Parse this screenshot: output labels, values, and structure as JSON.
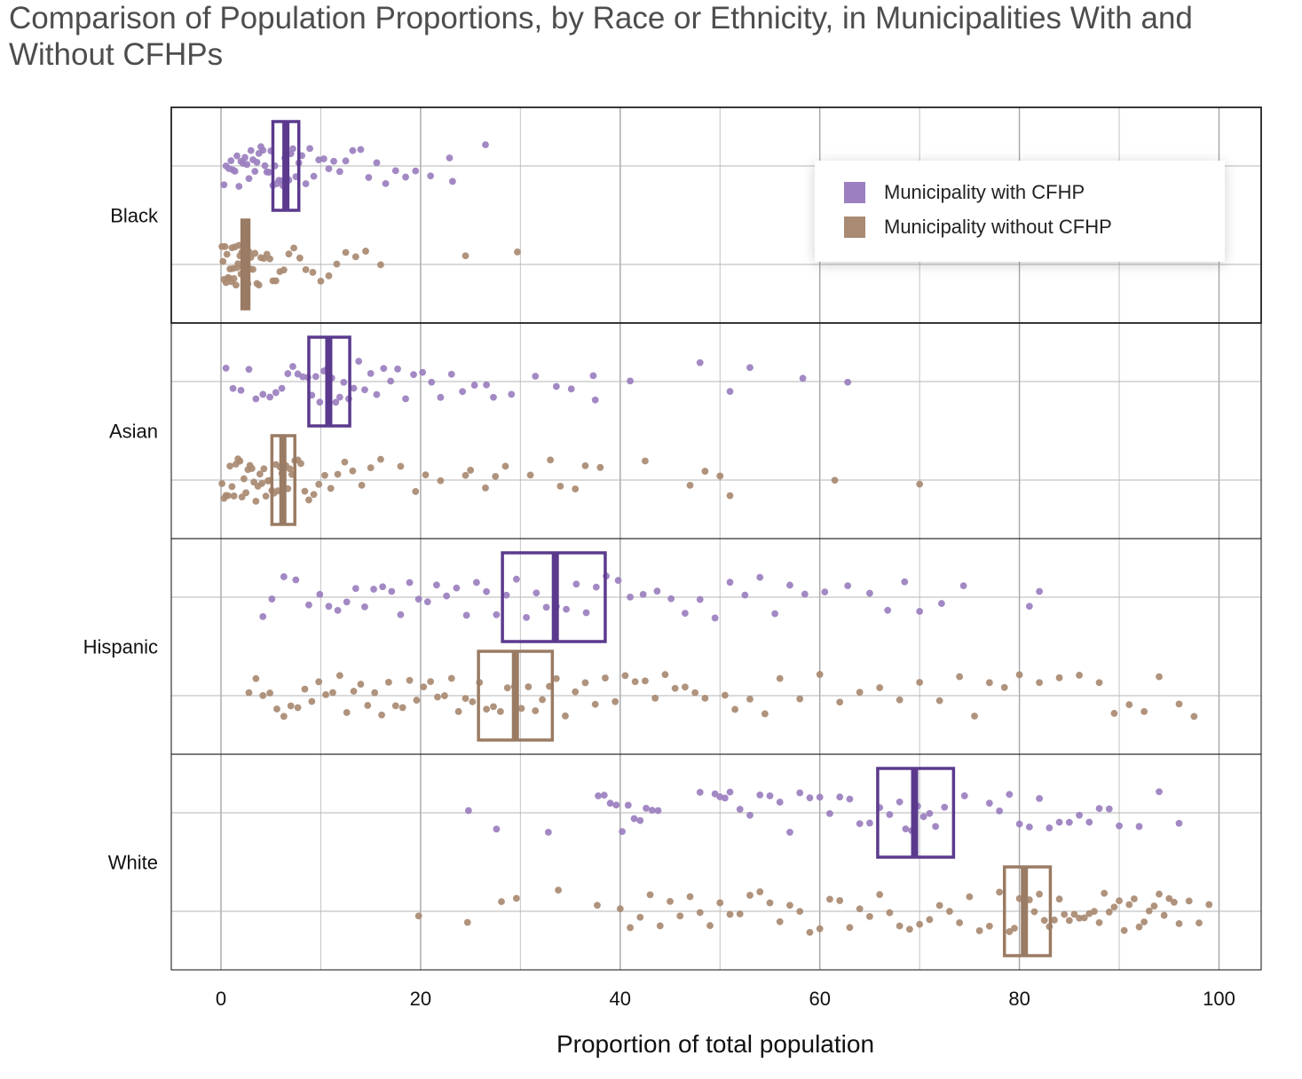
{
  "title": "Comparison of Population Proportions, by Race or Ethnicity, in Municipalities With and Without CFHPs",
  "colors": {
    "with_point": "#9b7fbf",
    "with_box": "#5b3a8e",
    "without_point": "#a98a72",
    "without_box": "#9a7b63",
    "grid": "#b3b3b3",
    "frame": "#222222"
  },
  "chart_data": {
    "type": "scatter",
    "title": "Comparison of Population Proportions, by Race or Ethnicity, in Municipalities With and Without CFHPs",
    "xlabel": "Proportion of total population",
    "ylabel": "",
    "xlim": [
      -5,
      104
    ],
    "x_ticks": [
      0,
      20,
      40,
      60,
      80,
      100
    ],
    "grid": true,
    "legend_position": "top-right",
    "categories": [
      "Black",
      "Asian",
      "Hispanic",
      "White"
    ],
    "series": [
      {
        "name": "Municipality with CFHP",
        "color": "#9b7fbf"
      },
      {
        "name": "Municipality without CFHP",
        "color": "#a98a72"
      }
    ],
    "groups": [
      {
        "category": "Black",
        "with_cfhp": {
          "box": {
            "q1": 5.2,
            "median": 6.5,
            "q3": 7.8
          },
          "points": [
            0.3,
            0.5,
            0.8,
            1,
            1.2,
            1.4,
            1.6,
            1.8,
            2,
            2.2,
            2.4,
            2.6,
            2.8,
            3,
            3.2,
            3.4,
            3.6,
            3.8,
            4,
            4.2,
            4.4,
            4.6,
            4.8,
            5,
            5.2,
            5.4,
            5.6,
            5.8,
            6,
            6.2,
            6.4,
            6.6,
            6.8,
            7,
            7.2,
            7.5,
            7.8,
            8.1,
            8.5,
            8.9,
            9.3,
            9.8,
            10.3,
            10.8,
            11.3,
            11.9,
            12.5,
            13.2,
            14,
            14.8,
            15.6,
            16.5,
            17.5,
            18.5,
            19.5,
            21,
            22.9,
            23.2,
            26.5
          ]
        },
        "without_cfhp": {
          "box": {
            "q1": 2.1,
            "median": 2.4,
            "q3": 2.8
          },
          "points": [
            0.1,
            0.2,
            0.3,
            0.4,
            0.5,
            0.6,
            0.7,
            0.8,
            0.9,
            1,
            1.1,
            1.2,
            1.3,
            1.4,
            1.5,
            1.6,
            1.7,
            1.8,
            1.9,
            2,
            2.1,
            2.2,
            2.3,
            2.4,
            2.5,
            2.6,
            2.7,
            2.8,
            2.9,
            3,
            3.2,
            3.4,
            3.6,
            3.8,
            4,
            4.3,
            4.6,
            4.9,
            5.2,
            5.5,
            5.9,
            6.3,
            6.8,
            7.3,
            7.9,
            8.5,
            9.2,
            10,
            10.8,
            11.6,
            12.5,
            13.5,
            14.5,
            16,
            24.5,
            29.7
          ]
        }
      },
      {
        "category": "Asian",
        "with_cfhp": {
          "box": {
            "q1": 8.8,
            "median": 10.8,
            "q3": 12.9
          },
          "points": [
            0.5,
            1.2,
            2,
            2.8,
            3.5,
            4.2,
            4.9,
            5.5,
            6.1,
            6.7,
            7.2,
            7.7,
            8.2,
            8.7,
            9.1,
            9.5,
            9.9,
            10.3,
            10.7,
            11.1,
            11.5,
            11.9,
            12.3,
            12.8,
            13.3,
            13.8,
            14.4,
            15,
            15.6,
            16.3,
            17,
            17.7,
            18.5,
            19.3,
            20.2,
            21.1,
            22,
            23.1,
            24.2,
            25.4,
            26.6,
            27.3,
            29.1,
            31.5,
            33.6,
            35.1,
            37.3,
            37.5,
            41,
            48,
            51,
            53,
            58.3,
            62.8
          ]
        },
        "without_cfhp": {
          "box": {
            "q1": 5.1,
            "median": 6.2,
            "q3": 7.4
          },
          "points": [
            0.1,
            0.3,
            0.5,
            0.7,
            0.9,
            1.1,
            1.3,
            1.5,
            1.7,
            1.9,
            2.1,
            2.3,
            2.5,
            2.7,
            2.9,
            3.1,
            3.3,
            3.5,
            3.7,
            3.9,
            4.1,
            4.3,
            4.5,
            4.7,
            4.9,
            5.1,
            5.3,
            5.5,
            5.7,
            5.9,
            6.1,
            6.3,
            6.5,
            6.7,
            6.9,
            7.1,
            7.4,
            7.7,
            8,
            8.4,
            8.8,
            9.3,
            9.8,
            10.4,
            11,
            11.7,
            12.4,
            13.2,
            14.1,
            15,
            16,
            18,
            19.5,
            20.5,
            22,
            24.5,
            25,
            26.5,
            27.5,
            28.5,
            31,
            33,
            34,
            35.5,
            36.5,
            38,
            42.5,
            47,
            48.5,
            50,
            51,
            61.5,
            70
          ]
        }
      },
      {
        "category": "Hispanic",
        "with_cfhp": {
          "box": {
            "q1": 28.2,
            "median": 33.5,
            "q3": 38.5
          },
          "points": [
            4.2,
            5.1,
            6.3,
            7.5,
            8.8,
            9.9,
            10.8,
            11.7,
            12.6,
            13.5,
            14.4,
            15.3,
            16.2,
            17.1,
            18,
            18.9,
            19.8,
            20.7,
            21.6,
            22.6,
            23.6,
            24.6,
            25.6,
            26.6,
            27.6,
            28.6,
            29.6,
            30.6,
            31.6,
            32.6,
            33.6,
            34.6,
            35.6,
            36.6,
            37.6,
            38.6,
            39.8,
            41,
            42.3,
            43.7,
            45.1,
            46.5,
            48,
            49.5,
            51,
            52.5,
            54,
            55.5,
            57,
            58.5,
            60.5,
            62.8,
            65,
            66.8,
            68.5,
            70,
            72.2,
            74.4,
            81,
            82
          ]
        },
        "without_cfhp": {
          "box": {
            "q1": 25.8,
            "median": 29.5,
            "q3": 33.2
          },
          "points": [
            2.8,
            3.5,
            4.2,
            4.9,
            5.6,
            6.3,
            7,
            7.7,
            8.4,
            9.1,
            9.8,
            10.5,
            11.2,
            11.9,
            12.6,
            13.3,
            14,
            14.7,
            15.4,
            16.1,
            16.8,
            17.5,
            18.2,
            18.9,
            19.6,
            20.3,
            21,
            21.7,
            22.4,
            23.1,
            23.8,
            24.5,
            25.2,
            25.9,
            26.6,
            27.3,
            28,
            28.7,
            29.4,
            30.1,
            30.8,
            31.5,
            32.2,
            32.9,
            33.6,
            34.5,
            35.5,
            36.5,
            37.5,
            38.5,
            39.5,
            40.5,
            41.5,
            42.5,
            43.5,
            44.5,
            45.5,
            46.5,
            47.5,
            48.5,
            50.5,
            51.5,
            53,
            54.5,
            56,
            58,
            60,
            62,
            64,
            66,
            68,
            70,
            72,
            74,
            75.5,
            77,
            78.5,
            80,
            82,
            84,
            86,
            88,
            89.5,
            91,
            92.5,
            94,
            96,
            97.5
          ]
        }
      },
      {
        "category": "White",
        "with_cfhp": {
          "box": {
            "q1": 65.8,
            "median": 69.5,
            "q3": 73.4
          },
          "points": [
            24.8,
            27.6,
            32.8,
            37.8,
            38.4,
            39,
            39.6,
            40.2,
            40.8,
            41.4,
            42,
            42.6,
            43.2,
            43.8,
            48,
            49.5,
            50,
            50.5,
            51,
            52,
            53,
            54,
            55,
            56,
            57,
            58,
            59,
            60,
            61,
            62,
            63,
            64,
            65,
            66,
            67,
            68,
            68.6,
            69.2,
            69.8,
            70.4,
            71,
            71.6,
            72.5,
            74.5,
            77,
            78,
            79,
            80,
            81,
            82,
            83,
            84,
            85,
            86,
            87,
            88,
            89,
            90,
            92,
            94,
            96
          ]
        },
        "without_cfhp": {
          "box": {
            "q1": 78.5,
            "median": 80.5,
            "q3": 83.1
          },
          "points": [
            19.8,
            24.7,
            28.1,
            29.6,
            33.8,
            37.7,
            40,
            41,
            42,
            43,
            44,
            45,
            46,
            47,
            48,
            49,
            50,
            51,
            52,
            53,
            54,
            55,
            56,
            57,
            58,
            59,
            60,
            61,
            62,
            63,
            64,
            65,
            66,
            67,
            68,
            69,
            70,
            71,
            72,
            73,
            74,
            75,
            76,
            77,
            78,
            79,
            79.5,
            80,
            80.5,
            81,
            81.5,
            82,
            82.5,
            83,
            83.5,
            84,
            84.5,
            85,
            85.5,
            86,
            86.5,
            87,
            87.5,
            88,
            88.5,
            89,
            89.5,
            90,
            90.5,
            91,
            91.5,
            92,
            92.5,
            93,
            93.5,
            94,
            94.5,
            95,
            95.5,
            96,
            97,
            98,
            99
          ]
        }
      }
    ]
  }
}
